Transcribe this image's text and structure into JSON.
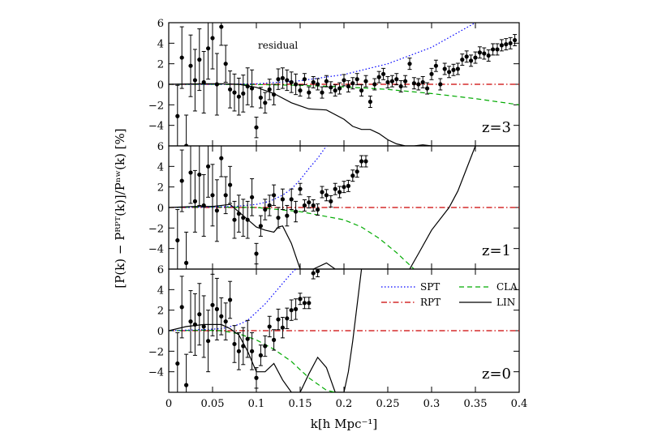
{
  "chart_data": {
    "type": "line",
    "xlabel": "k[h Mpc⁻¹]",
    "ylabel": "[P(k) − Pᴿᴾᵀ(k)]/Pⁿʷ(k) [%]",
    "xlim": [
      0,
      0.4
    ],
    "xticks": [
      0,
      0.05,
      0.1,
      0.15,
      0.2,
      0.25,
      0.3,
      0.35,
      0.4
    ],
    "xtick_labels": [
      "0",
      "0.05",
      "0.1",
      "0.15",
      "0.2",
      "0.25",
      "0.3",
      "0.35",
      "0.4"
    ],
    "annotation": "residual",
    "colors": {
      "SPT": "#0000ff",
      "RPT": "#cc0000",
      "CLA": "#00aa00",
      "LIN": "#000000",
      "data": "#000000"
    },
    "legend": [
      {
        "name": "SPT",
        "style": "dotted",
        "color": "#0000ff"
      },
      {
        "name": "CLA",
        "style": "dashed",
        "color": "#00aa00"
      },
      {
        "name": "RPT",
        "style": "dash-dot",
        "color": "#cc0000"
      },
      {
        "name": "LIN",
        "style": "solid",
        "color": "#000000"
      }
    ],
    "panels": [
      {
        "label": "z=3",
        "ylim": [
          -6,
          6
        ],
        "yticks": [
          -4,
          -2,
          0,
          2,
          4,
          6
        ],
        "ytick_labels": [
          "−4",
          "−2",
          "0",
          "2",
          "4",
          "6"
        ],
        "series": {
          "SPT": {
            "x": [
              0,
              0.05,
              0.1,
              0.15,
              0.2,
              0.25,
              0.3,
              0.35
            ],
            "y": [
              0,
              0,
              0.05,
              0.35,
              0.95,
              2.0,
              3.6,
              6.0
            ]
          },
          "CLA": {
            "x": [
              0,
              0.05,
              0.1,
              0.15,
              0.2,
              0.25,
              0.3,
              0.35,
              0.4
            ],
            "y": [
              0,
              0,
              -0.02,
              -0.1,
              -0.25,
              -0.5,
              -0.9,
              -1.4,
              -2.0
            ]
          },
          "RPT": {
            "x": [
              0,
              0.4
            ],
            "y": [
              0,
              0
            ]
          },
          "LIN": {
            "x": [
              0,
              0.04,
              0.06,
              0.08,
              0.1,
              0.12,
              0.14,
              0.16,
              0.18,
              0.2,
              0.21,
              0.22,
              0.23,
              0.24,
              0.25,
              0.26,
              0.27,
              0.28,
              0.29,
              0.3
            ],
            "y": [
              0,
              0.05,
              0.05,
              0,
              -0.3,
              -0.9,
              -1.8,
              -2.4,
              -2.5,
              -3.4,
              -4.1,
              -4.4,
              -4.4,
              -4.8,
              -5.4,
              -5.8,
              -6.0,
              -6.0,
              -5.9,
              -6.0
            ]
          },
          "data": {
            "x": [
              0.01,
              0.015,
              0.02,
              0.025,
              0.03,
              0.035,
              0.04,
              0.045,
              0.05,
              0.055,
              0.06,
              0.065,
              0.07,
              0.075,
              0.08,
              0.085,
              0.09,
              0.095,
              0.1,
              0.105,
              0.11,
              0.115,
              0.12,
              0.125,
              0.13,
              0.135,
              0.14,
              0.145,
              0.15,
              0.155,
              0.16,
              0.165,
              0.17,
              0.175,
              0.18,
              0.185,
              0.19,
              0.195,
              0.2,
              0.205,
              0.21,
              0.215,
              0.22,
              0.225,
              0.23,
              0.235,
              0.24,
              0.245,
              0.25,
              0.255,
              0.26,
              0.265,
              0.27,
              0.275,
              0.28,
              0.285,
              0.29,
              0.295,
              0.3,
              0.305,
              0.31,
              0.315,
              0.32,
              0.325,
              0.33,
              0.335,
              0.34,
              0.345,
              0.35,
              0.355,
              0.36,
              0.365,
              0.37,
              0.375,
              0.38,
              0.385,
              0.39,
              0.395
            ],
            "y": [
              -3.1,
              2.6,
              -6.0,
              1.8,
              0.4,
              2.4,
              0.2,
              3.5,
              4.5,
              0.0,
              5.6,
              2.0,
              -0.5,
              -0.8,
              -1.2,
              -0.9,
              -0.2,
              -0.4,
              -4.2,
              -1.3,
              -1.8,
              -0.5,
              -1.0,
              0.5,
              0.6,
              0.4,
              0.2,
              0.0,
              -0.6,
              0.5,
              -0.8,
              0.2,
              0.0,
              -0.8,
              0.3,
              -0.3,
              -0.6,
              -0.4,
              0.4,
              -0.2,
              0.1,
              0.5,
              -0.6,
              0.3,
              -1.7,
              0.0,
              0.7,
              1.0,
              0.2,
              0.3,
              0.5,
              -0.2,
              0.3,
              2.0,
              0.1,
              0.0,
              0.2,
              -0.4,
              1.0,
              1.8,
              0.0,
              1.5,
              1.2,
              1.4,
              1.5,
              2.4,
              2.7,
              2.3,
              2.6,
              3.1,
              3.0,
              2.8,
              3.4,
              3.4,
              3.8,
              3.9,
              4.0,
              4.3
            ]
          }
        }
      },
      {
        "label": "z=1",
        "ylim": [
          -6,
          6
        ],
        "yticks": [
          -4,
          -2,
          0,
          2,
          4,
          6
        ],
        "ytick_labels": [
          "−4",
          "−2",
          "0",
          "2",
          "4",
          "6"
        ],
        "series": {
          "SPT": {
            "x": [
              0,
              0.05,
              0.075,
              0.1,
              0.115,
              0.13,
              0.14,
              0.15,
              0.16,
              0.17,
              0.18
            ],
            "y": [
              0,
              0.05,
              0.1,
              0.3,
              0.6,
              1.2,
              1.8,
              2.7,
              3.8,
              4.8,
              6.0
            ]
          },
          "CLA": {
            "x": [
              0,
              0.05,
              0.1,
              0.15,
              0.2,
              0.22,
              0.24,
              0.26,
              0.28
            ],
            "y": [
              0,
              0.05,
              0,
              -0.4,
              -1.2,
              -1.9,
              -3.0,
              -4.4,
              -6.0
            ]
          },
          "RPT": {
            "x": [
              0,
              0.4
            ],
            "y": [
              0,
              0
            ]
          },
          "LIN": {
            "x": [
              0,
              0.03,
              0.05,
              0.07,
              0.085,
              0.1,
              0.11,
              0.12,
              0.125,
              0.13,
              0.14,
              0.15,
              0.155,
              0.165,
              0.18,
              0.19,
              0.275,
              0.285,
              0.3,
              0.32,
              0.33,
              0.34,
              0.35
            ],
            "y": [
              0,
              0.1,
              0.1,
              0.3,
              -0.8,
              -1.9,
              -2.2,
              -2.4,
              -1.9,
              -1.8,
              -3.5,
              -6.0,
              -6.0,
              -6.0,
              -5.4,
              -6.0,
              -6.0,
              -4.5,
              -2.2,
              0,
              1.6,
              3.8,
              6.0
            ]
          },
          "data": {
            "x": [
              0.01,
              0.015,
              0.02,
              0.025,
              0.03,
              0.035,
              0.04,
              0.045,
              0.05,
              0.055,
              0.06,
              0.065,
              0.07,
              0.075,
              0.08,
              0.085,
              0.09,
              0.095,
              0.1,
              0.105,
              0.11,
              0.115,
              0.12,
              0.125,
              0.13,
              0.135,
              0.14,
              0.145,
              0.15,
              0.155,
              0.16,
              0.165,
              0.17,
              0.175,
              0.18,
              0.185,
              0.19,
              0.195,
              0.2,
              0.205,
              0.21,
              0.215,
              0.22,
              0.225
            ],
            "y": [
              -3.2,
              2.6,
              -5.4,
              3.4,
              0.6,
              3.2,
              0.2,
              4.0,
              1.2,
              -0.3,
              4.8,
              1.2,
              2.2,
              -1.2,
              -0.6,
              -1.0,
              -1.2,
              1.0,
              -4.5,
              -1.8,
              -0.2,
              0.2,
              1.2,
              -1.0,
              0.8,
              -0.8,
              0.8,
              -0.4,
              1.8,
              0.2,
              0.5,
              0.2,
              -0.2,
              1.5,
              1.2,
              0.6,
              1.8,
              1.5,
              2.0,
              2.1,
              3.1,
              3.5,
              4.5,
              4.5
            ]
          }
        }
      },
      {
        "label": "z=0",
        "ylim": [
          -6,
          6
        ],
        "yticks": [
          -4,
          -2,
          0,
          2,
          4,
          6
        ],
        "ytick_labels": [
          "−4",
          "−2",
          "0",
          "2",
          "4",
          "6"
        ],
        "series": {
          "SPT": {
            "x": [
              0,
              0.04,
              0.06,
              0.08,
              0.09,
              0.1,
              0.11,
              0.12,
              0.13,
              0.14,
              0.145
            ],
            "y": [
              0,
              0.1,
              0.2,
              0.6,
              1.0,
              1.8,
              2.6,
              3.6,
              4.6,
              5.6,
              6.0
            ]
          },
          "CLA": {
            "x": [
              0,
              0.04,
              0.06,
              0.08,
              0.1,
              0.12,
              0.14,
              0.16,
              0.18,
              0.19
            ],
            "y": [
              0,
              0.05,
              0,
              -0.3,
              -0.9,
              -1.8,
              -3.0,
              -4.6,
              -5.8,
              -6.0
            ]
          },
          "RPT": {
            "x": [
              0,
              0.4
            ],
            "y": [
              0,
              0
            ]
          },
          "LIN": {
            "x": [
              0,
              0.02,
              0.04,
              0.06,
              0.07,
              0.08,
              0.09,
              0.1,
              0.11,
              0.12,
              0.13,
              0.14,
              0.15,
              0.16,
              0.17,
              0.18,
              0.19,
              0.2,
              0.205,
              0.21,
              0.215,
              0.22
            ],
            "y": [
              0,
              0.4,
              0.6,
              0.6,
              0.2,
              -0.4,
              -2.0,
              -4.0,
              -4.0,
              -3.2,
              -4.8,
              -6.0,
              -6.0,
              -4.2,
              -2.6,
              -3.6,
              -6.0,
              -6.0,
              -4.0,
              -1.0,
              2.5,
              6.0
            ]
          },
          "data": {
            "x": [
              0.01,
              0.015,
              0.02,
              0.025,
              0.03,
              0.035,
              0.04,
              0.045,
              0.05,
              0.055,
              0.06,
              0.065,
              0.07,
              0.075,
              0.08,
              0.085,
              0.09,
              0.095,
              0.1,
              0.105,
              0.11,
              0.115,
              0.12,
              0.125,
              0.13,
              0.135,
              0.14,
              0.145,
              0.15,
              0.155,
              0.16,
              0.165,
              0.17
            ],
            "y": [
              -3.2,
              2.3,
              -5.3,
              0.9,
              0.6,
              1.6,
              0.4,
              -1.0,
              2.5,
              2.1,
              1.4,
              0.9,
              3.0,
              -1.3,
              -2.0,
              -1.5,
              -0.8,
              -2.0,
              -4.6,
              -2.4,
              -1.5,
              0.4,
              -0.9,
              1.1,
              0.3,
              1.2,
              2.0,
              2.1,
              3.1,
              2.7,
              2.7,
              5.6,
              5.8
            ]
          }
        }
      }
    ]
  }
}
